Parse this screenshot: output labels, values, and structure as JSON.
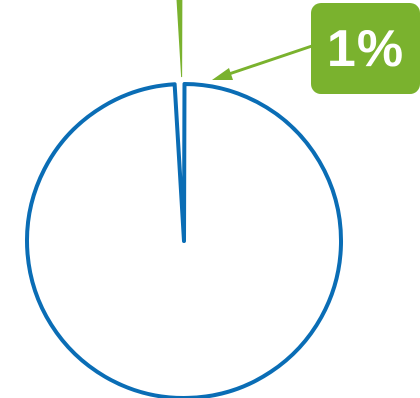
{
  "chart_data": {
    "type": "pie",
    "slices": [
      {
        "value": 99
      },
      {
        "value": 1,
        "label": "1%",
        "exploded": true
      }
    ]
  },
  "colors": {
    "main_slice_stroke": "#0a6db5",
    "highlight_slice": "#7ab22e",
    "callout_background": "#7ab22e",
    "callout_text": "#ffffff",
    "background": "#ffffff"
  }
}
